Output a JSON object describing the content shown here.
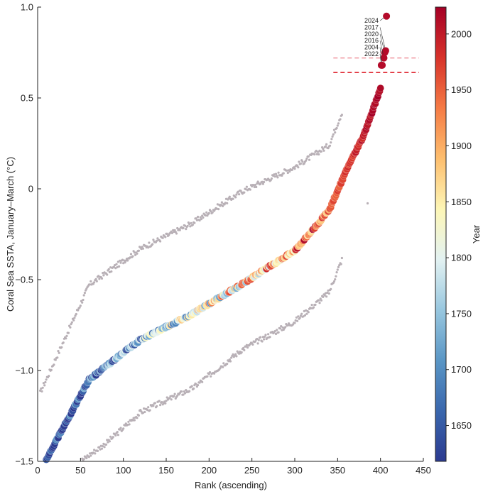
{
  "chart_data": {
    "type": "scatter",
    "xlabel": "Rank (ascending)",
    "ylabel": "Coral Sea SSTA, January–March (°C)",
    "colorbar_label": "Year",
    "xlim": [
      0,
      450
    ],
    "ylim": [
      -1.5,
      1.0
    ],
    "x_ticks": [
      0,
      50,
      100,
      150,
      200,
      250,
      300,
      350,
      400,
      450
    ],
    "x_tick_labels": [
      "0",
      "50",
      "100",
      "150",
      "200",
      "250",
      "300",
      "350",
      "400",
      "450"
    ],
    "y_ticks": [
      -1.5,
      -1.0,
      -0.5,
      0,
      0.5,
      1.0
    ],
    "y_tick_labels": [
      "−1.5",
      "−1.0",
      "−0.5",
      "0",
      "0.5",
      "1.0"
    ],
    "colorbar_range": [
      1618,
      2024
    ],
    "colorbar_ticks": [
      1650,
      1700,
      1750,
      1800,
      1850,
      1900,
      1950,
      2000
    ],
    "colorbar_tick_labels": [
      "1650",
      "1700",
      "1750",
      "1800",
      "1850",
      "1900",
      "1950",
      "2000"
    ],
    "colormap": [
      "#2b3a90",
      "#3a67ad",
      "#5a96c5",
      "#98c7df",
      "#e3f2f2",
      "#fdf6b6",
      "#fdbe6e",
      "#f57b45",
      "#d7322a",
      "#a50026"
    ],
    "series_main_ranks": [
      10,
      60,
      120,
      180,
      240,
      300,
      340,
      360,
      380,
      400
    ],
    "series_main_values": [
      -1.49,
      -1.05,
      -0.83,
      -0.69,
      -0.52,
      -0.34,
      -0.12,
      0.1,
      0.29,
      0.55
    ],
    "series_upper_ranks": [
      10,
      60,
      120,
      180,
      240,
      300,
      340,
      355,
      385
    ],
    "series_upper_values": [
      -1.05,
      -0.53,
      -0.33,
      -0.19,
      -0.01,
      0.12,
      0.24,
      0.42,
      -0.08
    ],
    "series_lower_ranks": [
      50,
      80,
      120,
      180,
      240,
      300,
      340,
      355
    ],
    "series_lower_values": [
      -1.5,
      -1.4,
      -1.23,
      -1.1,
      -0.88,
      -0.73,
      -0.57,
      -0.39
    ],
    "highlighted_points": [
      {
        "year": "2024",
        "rank": 407,
        "value": 0.95
      },
      {
        "year": "2017",
        "rank": 406,
        "value": 0.76
      },
      {
        "year": "2020",
        "rank": 405,
        "value": 0.75
      },
      {
        "year": "2016",
        "rank": 404,
        "value": 0.72
      },
      {
        "year": "2004",
        "rank": 402,
        "value": 0.68
      },
      {
        "year": "2022",
        "rank": 401,
        "value": 0.68
      }
    ],
    "reference_lines": [
      {
        "value": 0.72,
        "color": "#f0909a",
        "style": "dashed",
        "x_range": [
          345,
          445
        ]
      },
      {
        "value": 0.64,
        "color": "#e0303a",
        "style": "dashed",
        "x_range": [
          345,
          445
        ]
      }
    ],
    "point_count": 407,
    "grid": false
  }
}
